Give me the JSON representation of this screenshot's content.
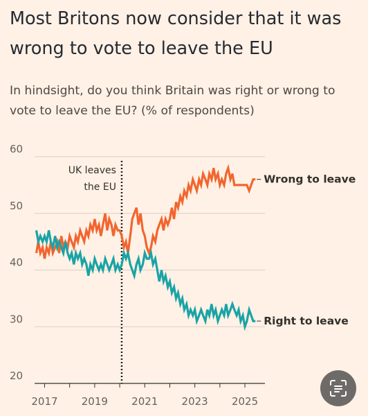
{
  "title": "Most Britons now consider that it was wrong to vote to leave the EU",
  "subtitle": "In hindsight, do you think Britain was right or wrong to vote to leave the EU? (% of respondents)",
  "colors": {
    "wrong": "#f2652f",
    "right": "#1aa3a6",
    "background": "#fff1e5"
  },
  "scan_button_icon": "text-scan-icon",
  "chart_data": {
    "type": "line",
    "title": "Most Britons now consider that it was wrong to vote to leave the EU",
    "subtitle": "In hindsight, do you think Britain was right or wrong to vote to leave the EU? (% of respondents)",
    "xlabel": "",
    "ylabel": "",
    "xlim": [
      2016.6,
      2025.8
    ],
    "ylim": [
      20,
      60
    ],
    "x_ticks": [
      2017,
      2019,
      2021,
      2023,
      2025
    ],
    "x_tick_labels": [
      "2017",
      "2019",
      "2021",
      "2023",
      "2025"
    ],
    "y_ticks": [
      20,
      30,
      40,
      50,
      60
    ],
    "y_tick_labels": [
      "20",
      "30",
      "40",
      "50",
      "60"
    ],
    "grid": true,
    "legend": "direct labels at right end of lines",
    "annotations": [
      {
        "text_lines": [
          "UK leaves",
          "the EU"
        ],
        "x": 2020.08,
        "style": "dotted vertical line"
      }
    ],
    "series": [
      {
        "name": "Wrong to leave",
        "color": "#f2652f",
        "points": [
          [
            2016.67,
            43
          ],
          [
            2016.75,
            45
          ],
          [
            2016.83,
            43
          ],
          [
            2016.92,
            44
          ],
          [
            2017.0,
            42
          ],
          [
            2017.08,
            44
          ],
          [
            2017.17,
            43
          ],
          [
            2017.25,
            45
          ],
          [
            2017.33,
            43
          ],
          [
            2017.42,
            44
          ],
          [
            2017.5,
            45
          ],
          [
            2017.58,
            43
          ],
          [
            2017.67,
            46
          ],
          [
            2017.75,
            44
          ],
          [
            2017.83,
            45
          ],
          [
            2017.92,
            44
          ],
          [
            2018.0,
            46
          ],
          [
            2018.08,
            45
          ],
          [
            2018.17,
            44
          ],
          [
            2018.25,
            46
          ],
          [
            2018.33,
            45
          ],
          [
            2018.42,
            47
          ],
          [
            2018.5,
            46
          ],
          [
            2018.58,
            45
          ],
          [
            2018.67,
            47
          ],
          [
            2018.75,
            46
          ],
          [
            2018.83,
            48
          ],
          [
            2018.92,
            47
          ],
          [
            2019.0,
            49
          ],
          [
            2019.08,
            47
          ],
          [
            2019.17,
            48
          ],
          [
            2019.25,
            46
          ],
          [
            2019.33,
            48
          ],
          [
            2019.42,
            50
          ],
          [
            2019.5,
            47
          ],
          [
            2019.58,
            49
          ],
          [
            2019.67,
            48
          ],
          [
            2019.75,
            46
          ],
          [
            2019.83,
            48
          ],
          [
            2019.92,
            47
          ],
          [
            2020.0,
            47
          ],
          [
            2020.08,
            46
          ],
          [
            2020.17,
            44
          ],
          [
            2020.25,
            45
          ],
          [
            2020.33,
            43
          ],
          [
            2020.42,
            46
          ],
          [
            2020.5,
            49
          ],
          [
            2020.58,
            50
          ],
          [
            2020.67,
            51
          ],
          [
            2020.75,
            48
          ],
          [
            2020.83,
            50
          ],
          [
            2020.92,
            47
          ],
          [
            2021.0,
            46
          ],
          [
            2021.08,
            44
          ],
          [
            2021.17,
            43
          ],
          [
            2021.25,
            44
          ],
          [
            2021.33,
            46
          ],
          [
            2021.42,
            45
          ],
          [
            2021.5,
            47
          ],
          [
            2021.58,
            48
          ],
          [
            2021.67,
            49
          ],
          [
            2021.75,
            47
          ],
          [
            2021.83,
            49
          ],
          [
            2021.92,
            48
          ],
          [
            2022.0,
            49
          ],
          [
            2022.08,
            51
          ],
          [
            2022.17,
            49
          ],
          [
            2022.25,
            52
          ],
          [
            2022.33,
            51
          ],
          [
            2022.42,
            53
          ],
          [
            2022.5,
            52
          ],
          [
            2022.58,
            54
          ],
          [
            2022.67,
            53
          ],
          [
            2022.75,
            55
          ],
          [
            2022.83,
            54
          ],
          [
            2022.92,
            56
          ],
          [
            2023.0,
            55
          ],
          [
            2023.08,
            54
          ],
          [
            2023.17,
            56
          ],
          [
            2023.25,
            55
          ],
          [
            2023.33,
            57
          ],
          [
            2023.42,
            56
          ],
          [
            2023.5,
            55
          ],
          [
            2023.58,
            57
          ],
          [
            2023.67,
            56
          ],
          [
            2023.75,
            58
          ],
          [
            2023.83,
            56
          ],
          [
            2023.92,
            57
          ],
          [
            2024.0,
            55
          ],
          [
            2024.08,
            56
          ],
          [
            2024.17,
            55
          ],
          [
            2024.25,
            57
          ],
          [
            2024.33,
            58
          ],
          [
            2024.42,
            56
          ],
          [
            2024.5,
            57
          ],
          [
            2024.58,
            55
          ],
          [
            2024.67,
            55
          ],
          [
            2024.75,
            55
          ],
          [
            2024.83,
            55
          ],
          [
            2024.92,
            55
          ],
          [
            2025.0,
            55
          ],
          [
            2025.08,
            55
          ],
          [
            2025.17,
            54
          ],
          [
            2025.25,
            55
          ],
          [
            2025.33,
            56
          ],
          [
            2025.42,
            56
          ]
        ]
      },
      {
        "name": "Right to leave",
        "color": "#1aa3a6",
        "points": [
          [
            2016.67,
            47
          ],
          [
            2016.75,
            45
          ],
          [
            2016.83,
            46
          ],
          [
            2016.92,
            45
          ],
          [
            2017.0,
            46
          ],
          [
            2017.08,
            45
          ],
          [
            2017.17,
            47
          ],
          [
            2017.25,
            45
          ],
          [
            2017.33,
            44
          ],
          [
            2017.42,
            46
          ],
          [
            2017.5,
            44
          ],
          [
            2017.58,
            45
          ],
          [
            2017.67,
            44
          ],
          [
            2017.75,
            43
          ],
          [
            2017.83,
            45
          ],
          [
            2017.92,
            43
          ],
          [
            2018.0,
            42
          ],
          [
            2018.08,
            43
          ],
          [
            2018.17,
            41
          ],
          [
            2018.25,
            43
          ],
          [
            2018.33,
            42
          ],
          [
            2018.42,
            43
          ],
          [
            2018.5,
            41
          ],
          [
            2018.58,
            42
          ],
          [
            2018.67,
            41
          ],
          [
            2018.75,
            39
          ],
          [
            2018.83,
            41
          ],
          [
            2018.92,
            40
          ],
          [
            2019.0,
            42
          ],
          [
            2019.08,
            41
          ],
          [
            2019.17,
            40
          ],
          [
            2019.25,
            41
          ],
          [
            2019.33,
            40
          ],
          [
            2019.42,
            42
          ],
          [
            2019.5,
            41
          ],
          [
            2019.58,
            40
          ],
          [
            2019.67,
            41
          ],
          [
            2019.75,
            42
          ],
          [
            2019.83,
            40
          ],
          [
            2019.92,
            41
          ],
          [
            2020.0,
            40
          ],
          [
            2020.08,
            41
          ],
          [
            2020.17,
            43
          ],
          [
            2020.25,
            42
          ],
          [
            2020.33,
            43
          ],
          [
            2020.42,
            41
          ],
          [
            2020.5,
            40
          ],
          [
            2020.58,
            39
          ],
          [
            2020.67,
            41
          ],
          [
            2020.75,
            42
          ],
          [
            2020.83,
            40
          ],
          [
            2020.92,
            41
          ],
          [
            2021.0,
            43
          ],
          [
            2021.08,
            42
          ],
          [
            2021.17,
            42
          ],
          [
            2021.25,
            43
          ],
          [
            2021.33,
            41
          ],
          [
            2021.42,
            42
          ],
          [
            2021.5,
            40
          ],
          [
            2021.58,
            38
          ],
          [
            2021.67,
            40
          ],
          [
            2021.75,
            38
          ],
          [
            2021.83,
            39
          ],
          [
            2021.92,
            37
          ],
          [
            2022.0,
            38
          ],
          [
            2022.08,
            36
          ],
          [
            2022.17,
            37
          ],
          [
            2022.25,
            35
          ],
          [
            2022.33,
            36
          ],
          [
            2022.42,
            34
          ],
          [
            2022.5,
            35
          ],
          [
            2022.58,
            33
          ],
          [
            2022.67,
            34
          ],
          [
            2022.75,
            32
          ],
          [
            2022.83,
            33
          ],
          [
            2022.92,
            32
          ],
          [
            2023.0,
            33
          ],
          [
            2023.08,
            31
          ],
          [
            2023.17,
            32
          ],
          [
            2023.25,
            33
          ],
          [
            2023.33,
            32
          ],
          [
            2023.42,
            31
          ],
          [
            2023.5,
            33
          ],
          [
            2023.58,
            32
          ],
          [
            2023.67,
            34
          ],
          [
            2023.75,
            32
          ],
          [
            2023.83,
            33
          ],
          [
            2023.92,
            31
          ],
          [
            2024.0,
            32
          ],
          [
            2024.08,
            33
          ],
          [
            2024.17,
            32
          ],
          [
            2024.25,
            34
          ],
          [
            2024.33,
            32
          ],
          [
            2024.42,
            33
          ],
          [
            2024.5,
            34
          ],
          [
            2024.58,
            33
          ],
          [
            2024.67,
            32
          ],
          [
            2024.75,
            33
          ],
          [
            2024.83,
            31
          ],
          [
            2024.92,
            32
          ],
          [
            2025.0,
            30
          ],
          [
            2025.08,
            31
          ],
          [
            2025.17,
            33
          ],
          [
            2025.25,
            32
          ],
          [
            2025.33,
            31
          ],
          [
            2025.42,
            31
          ]
        ]
      }
    ]
  }
}
